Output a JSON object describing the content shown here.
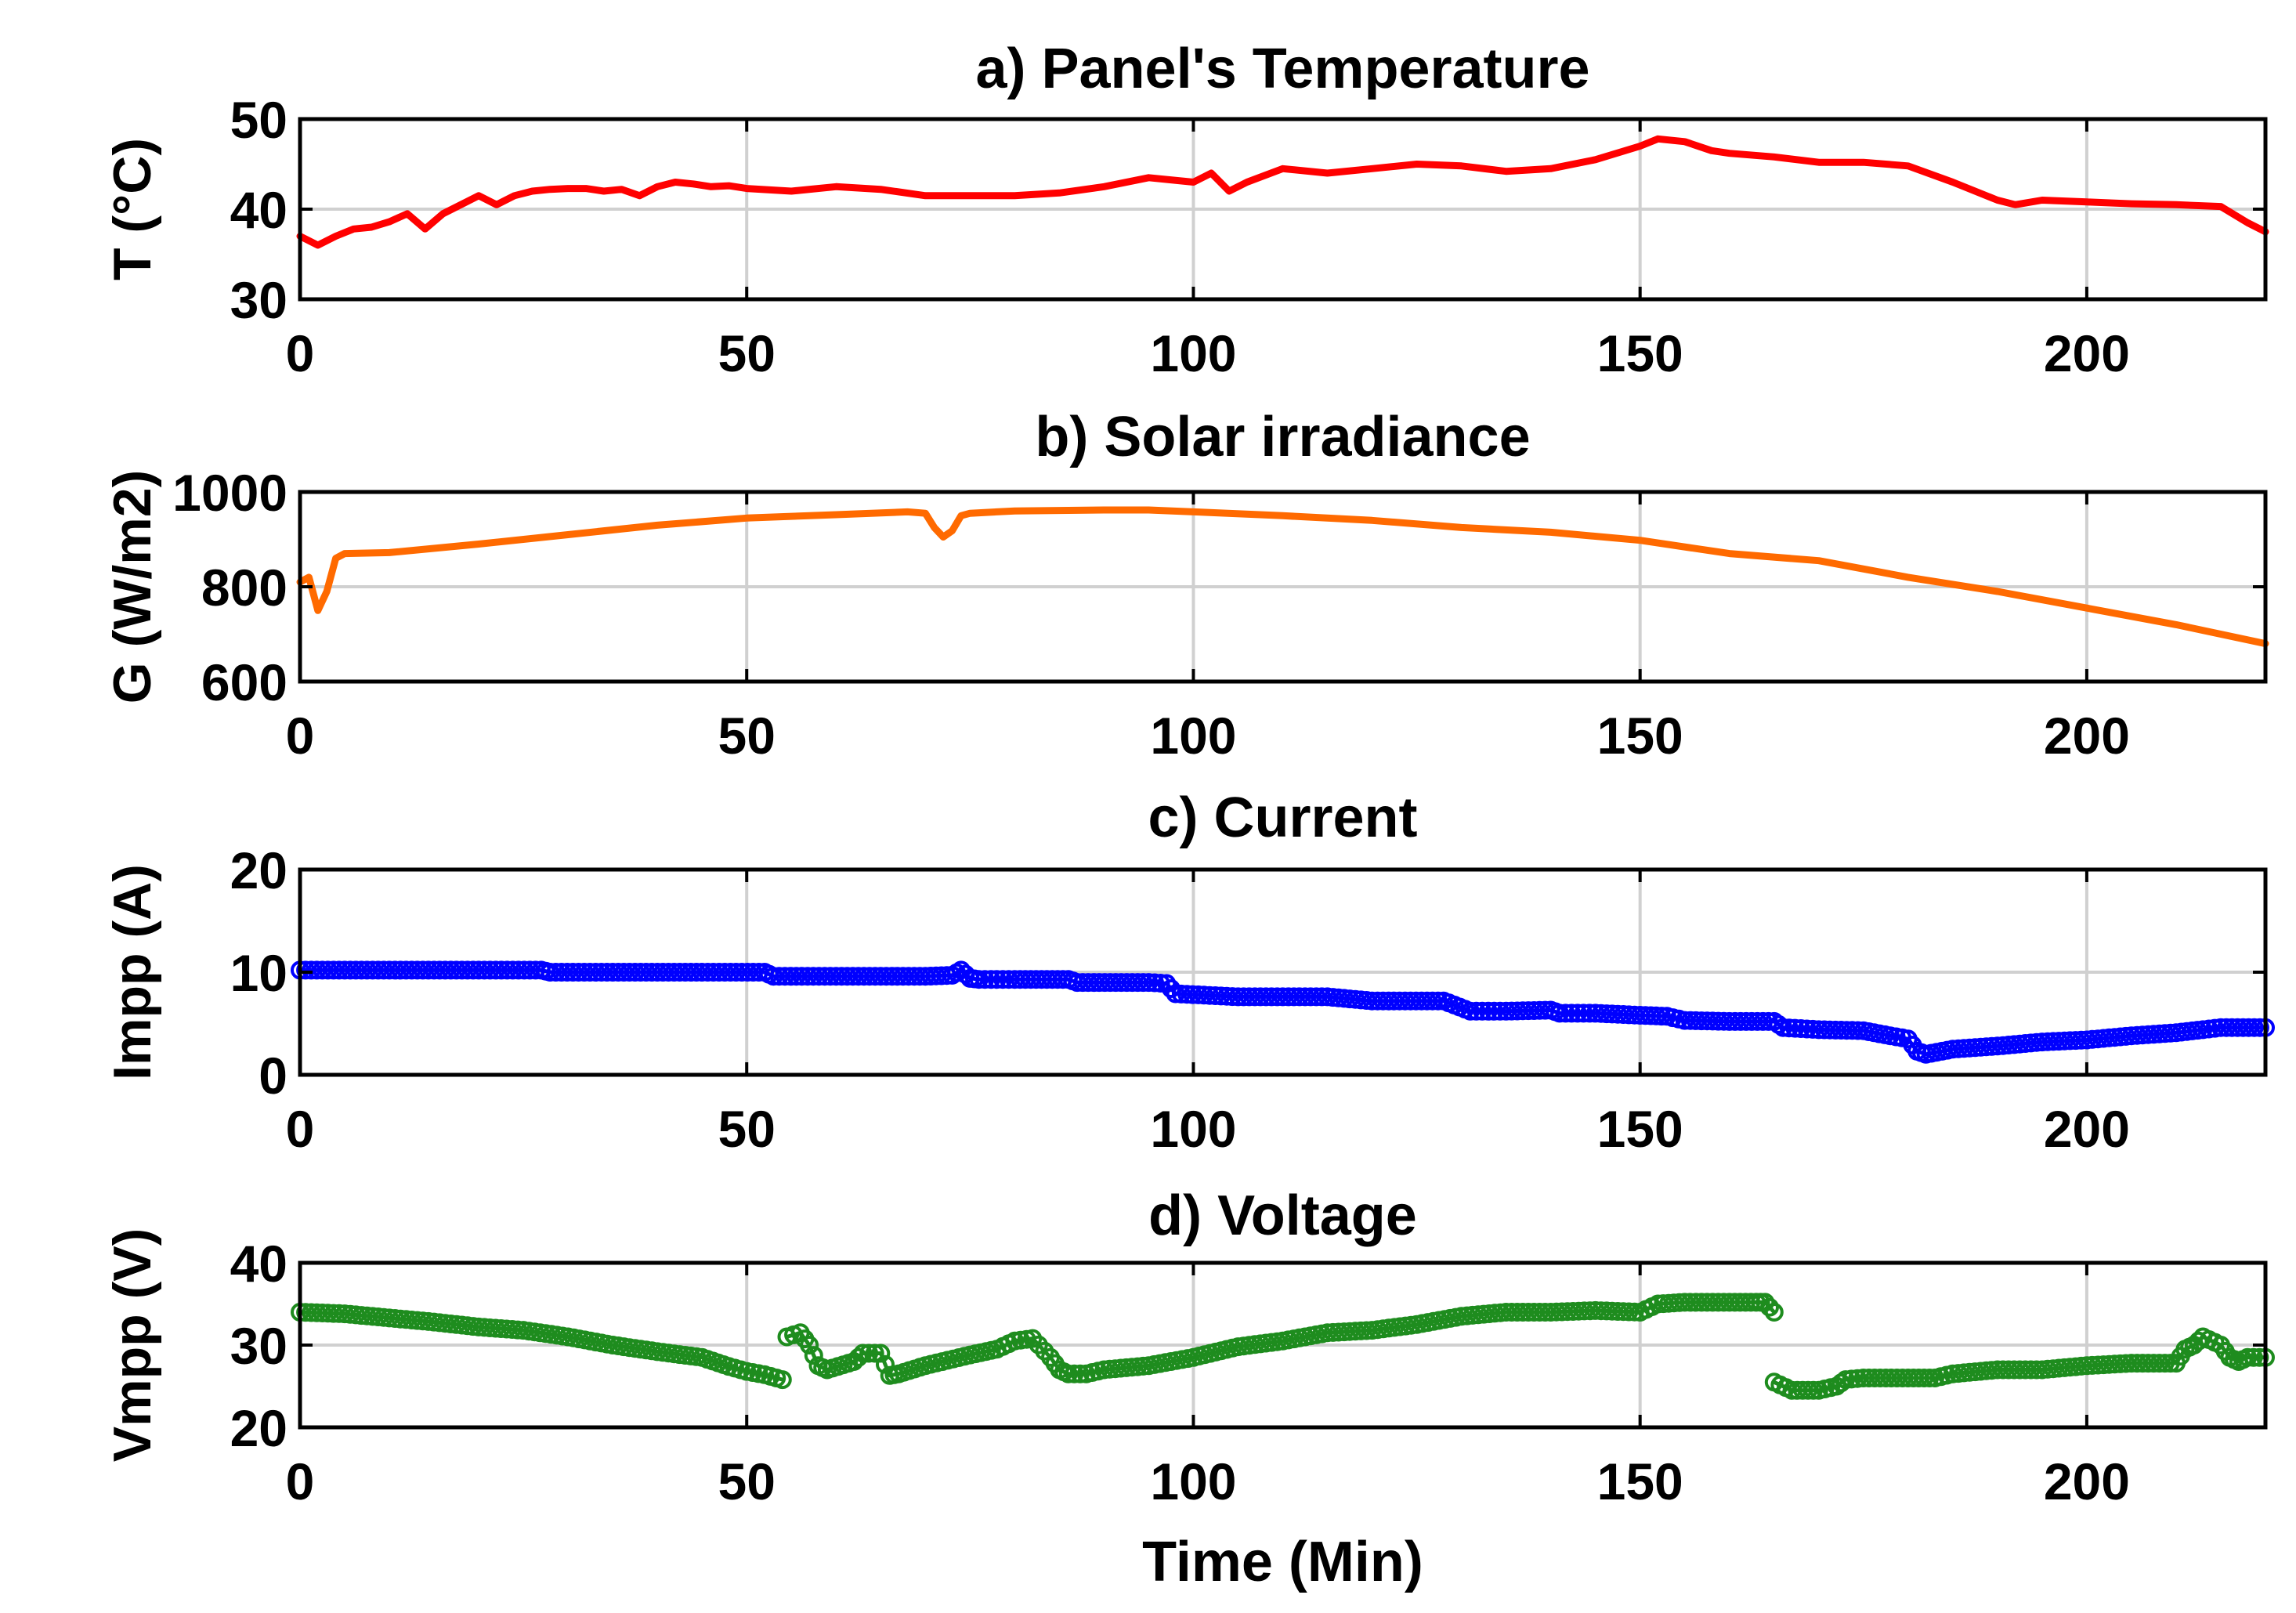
{
  "chart_data": [
    {
      "type": "line",
      "title": "a) Panel's Temperature",
      "xlabel": "",
      "ylabel": "T (°C)",
      "xlim": [
        0,
        220
      ],
      "ylim": [
        30,
        50
      ],
      "xticks": [
        0,
        50,
        100,
        150,
        200
      ],
      "yticks": [
        30,
        40,
        50
      ],
      "grid": true,
      "marker": "none",
      "color": "#ff0000",
      "series": [
        {
          "x": [
            0,
            2,
            4,
            6,
            8,
            10,
            12,
            14,
            16,
            18,
            20,
            22,
            24,
            26,
            28,
            30,
            32,
            34,
            36,
            38,
            40,
            42,
            44,
            46,
            48,
            50,
            55,
            60,
            65,
            70,
            75,
            80,
            85,
            90,
            95,
            100,
            102,
            104,
            106,
            110,
            115,
            120,
            125,
            130,
            135,
            140,
            145,
            150,
            152,
            155,
            158,
            160,
            165,
            170,
            175,
            180,
            185,
            190,
            192,
            195,
            200,
            205,
            210,
            215,
            218,
            220
          ],
          "y": [
            37,
            36,
            37,
            37.8,
            38,
            38.6,
            39.5,
            37.8,
            39.5,
            40.5,
            41.5,
            40.5,
            41.5,
            42,
            42.2,
            42.3,
            42.3,
            42,
            42.2,
            41.5,
            42.5,
            43,
            42.8,
            42.5,
            42.6,
            42.3,
            42,
            42.5,
            42.2,
            41.5,
            41.5,
            41.5,
            41.8,
            42.5,
            43.5,
            43,
            44,
            42,
            43,
            44.5,
            44,
            44.5,
            45,
            44.8,
            44.2,
            44.5,
            45.5,
            47,
            47.8,
            47.5,
            46.5,
            46.2,
            45.8,
            45.2,
            45.2,
            44.8,
            43,
            41,
            40.5,
            41,
            40.8,
            40.6,
            40.5,
            40.3,
            38.5,
            37.5
          ]
        }
      ]
    },
    {
      "type": "line",
      "title": "b) Solar irradiance",
      "xlabel": "",
      "ylabel": "G (W/m2)",
      "xlim": [
        0,
        220
      ],
      "ylim": [
        600,
        1000
      ],
      "xticks": [
        0,
        50,
        100,
        150,
        200
      ],
      "yticks": [
        600,
        800,
        1000
      ],
      "grid": true,
      "marker": "none",
      "color": "#ff6a00",
      "series": [
        {
          "x": [
            0,
            1,
            2,
            3,
            4,
            5,
            10,
            20,
            30,
            40,
            50,
            60,
            68,
            70,
            71,
            72,
            73,
            74,
            75,
            80,
            90,
            95,
            100,
            110,
            120,
            130,
            140,
            150,
            160,
            170,
            180,
            190,
            200,
            210,
            220
          ],
          "y": [
            810,
            820,
            750,
            790,
            860,
            870,
            872,
            890,
            910,
            930,
            945,
            952,
            958,
            955,
            925,
            905,
            918,
            950,
            955,
            960,
            962,
            962,
            958,
            950,
            940,
            925,
            915,
            898,
            870,
            855,
            820,
            790,
            755,
            720,
            680
          ]
        }
      ]
    },
    {
      "type": "line",
      "title": "c) Current",
      "xlabel": "",
      "ylabel": "Impp (A)",
      "xlim": [
        0,
        220
      ],
      "ylim": [
        0,
        20
      ],
      "xticks": [
        0,
        50,
        100,
        150,
        200
      ],
      "yticks": [
        0,
        10,
        20
      ],
      "grid": true,
      "marker": "circle",
      "color": "#0000ff",
      "series": [
        {
          "x": [
            0,
            10,
            20,
            27,
            28,
            35,
            45,
            52,
            53,
            60,
            70,
            73,
            74,
            75,
            76,
            80,
            86,
            87,
            95,
            97,
            98,
            105,
            115,
            120,
            128,
            131,
            135,
            140,
            141,
            145,
            150,
            153,
            155,
            160,
            165,
            166,
            170,
            175,
            178,
            180,
            181,
            182,
            185,
            190,
            195,
            200,
            205,
            210,
            213,
            215,
            220
          ],
          "y": [
            10.2,
            10.2,
            10.2,
            10.2,
            10,
            10,
            10,
            10,
            9.6,
            9.6,
            9.6,
            9.7,
            10.2,
            9.4,
            9.3,
            9.3,
            9.3,
            9,
            9,
            8.9,
            7.9,
            7.6,
            7.6,
            7.2,
            7.2,
            6.2,
            6.2,
            6.3,
            6,
            6,
            5.8,
            5.7,
            5.3,
            5.2,
            5.2,
            4.6,
            4.4,
            4.3,
            3.8,
            3.5,
            2.3,
            2,
            2.5,
            2.8,
            3.2,
            3.4,
            3.8,
            4.1,
            4.4,
            4.6,
            4.6
          ]
        }
      ]
    },
    {
      "type": "line",
      "title": "d) Voltage",
      "xlabel": "Time (Min)",
      "ylabel": "Vmpp (V)",
      "xlim": [
        0,
        220
      ],
      "ylim": [
        20,
        40
      ],
      "xticks": [
        0,
        50,
        100,
        150,
        200
      ],
      "yticks": [
        20,
        30,
        40
      ],
      "grid": true,
      "marker": "circle",
      "color": "#1e8c1e",
      "series": [
        {
          "x": [
            0,
            5,
            10,
            15,
            20,
            25,
            30,
            35,
            40,
            45,
            48,
            50,
            52,
            54
          ],
          "y": [
            34,
            33.8,
            33.3,
            32.8,
            32.2,
            31.8,
            31,
            30,
            29.2,
            28.5,
            27.4,
            26.8,
            26.4,
            25.8
          ]
        },
        {
          "x": [
            54.5,
            56,
            57,
            58,
            59,
            62,
            63,
            65,
            66,
            67,
            70,
            75,
            78,
            80,
            82,
            84,
            85,
            86,
            88,
            90,
            95,
            100,
            105,
            110,
            115,
            120,
            125,
            130,
            135,
            140,
            145,
            150,
            152,
            155,
            160,
            163,
            164,
            165
          ],
          "y": [
            31,
            31.5,
            30,
            27.5,
            27,
            28,
            29,
            29,
            26.3,
            26.5,
            27.5,
            28.8,
            29.5,
            30.5,
            30.8,
            28.5,
            27,
            26.5,
            26.5,
            27,
            27.5,
            28.5,
            29.8,
            30.5,
            31.5,
            31.8,
            32.5,
            33.5,
            34,
            34,
            34.2,
            34,
            35,
            35.2,
            35.2,
            35.2,
            35.2,
            34
          ]
        },
        {
          "x": [
            165,
            167,
            170,
            172,
            173,
            175,
            180,
            183,
            185,
            190,
            195,
            200,
            205,
            210,
            211,
            212,
            213,
            215,
            216,
            217,
            218,
            220
          ],
          "y": [
            25.5,
            24.5,
            24.5,
            25,
            25.8,
            26,
            26,
            26,
            26.5,
            27,
            27,
            27.5,
            27.8,
            27.8,
            29.5,
            30,
            31,
            30,
            28.5,
            28,
            28.5,
            28.5
          ]
        }
      ]
    }
  ]
}
